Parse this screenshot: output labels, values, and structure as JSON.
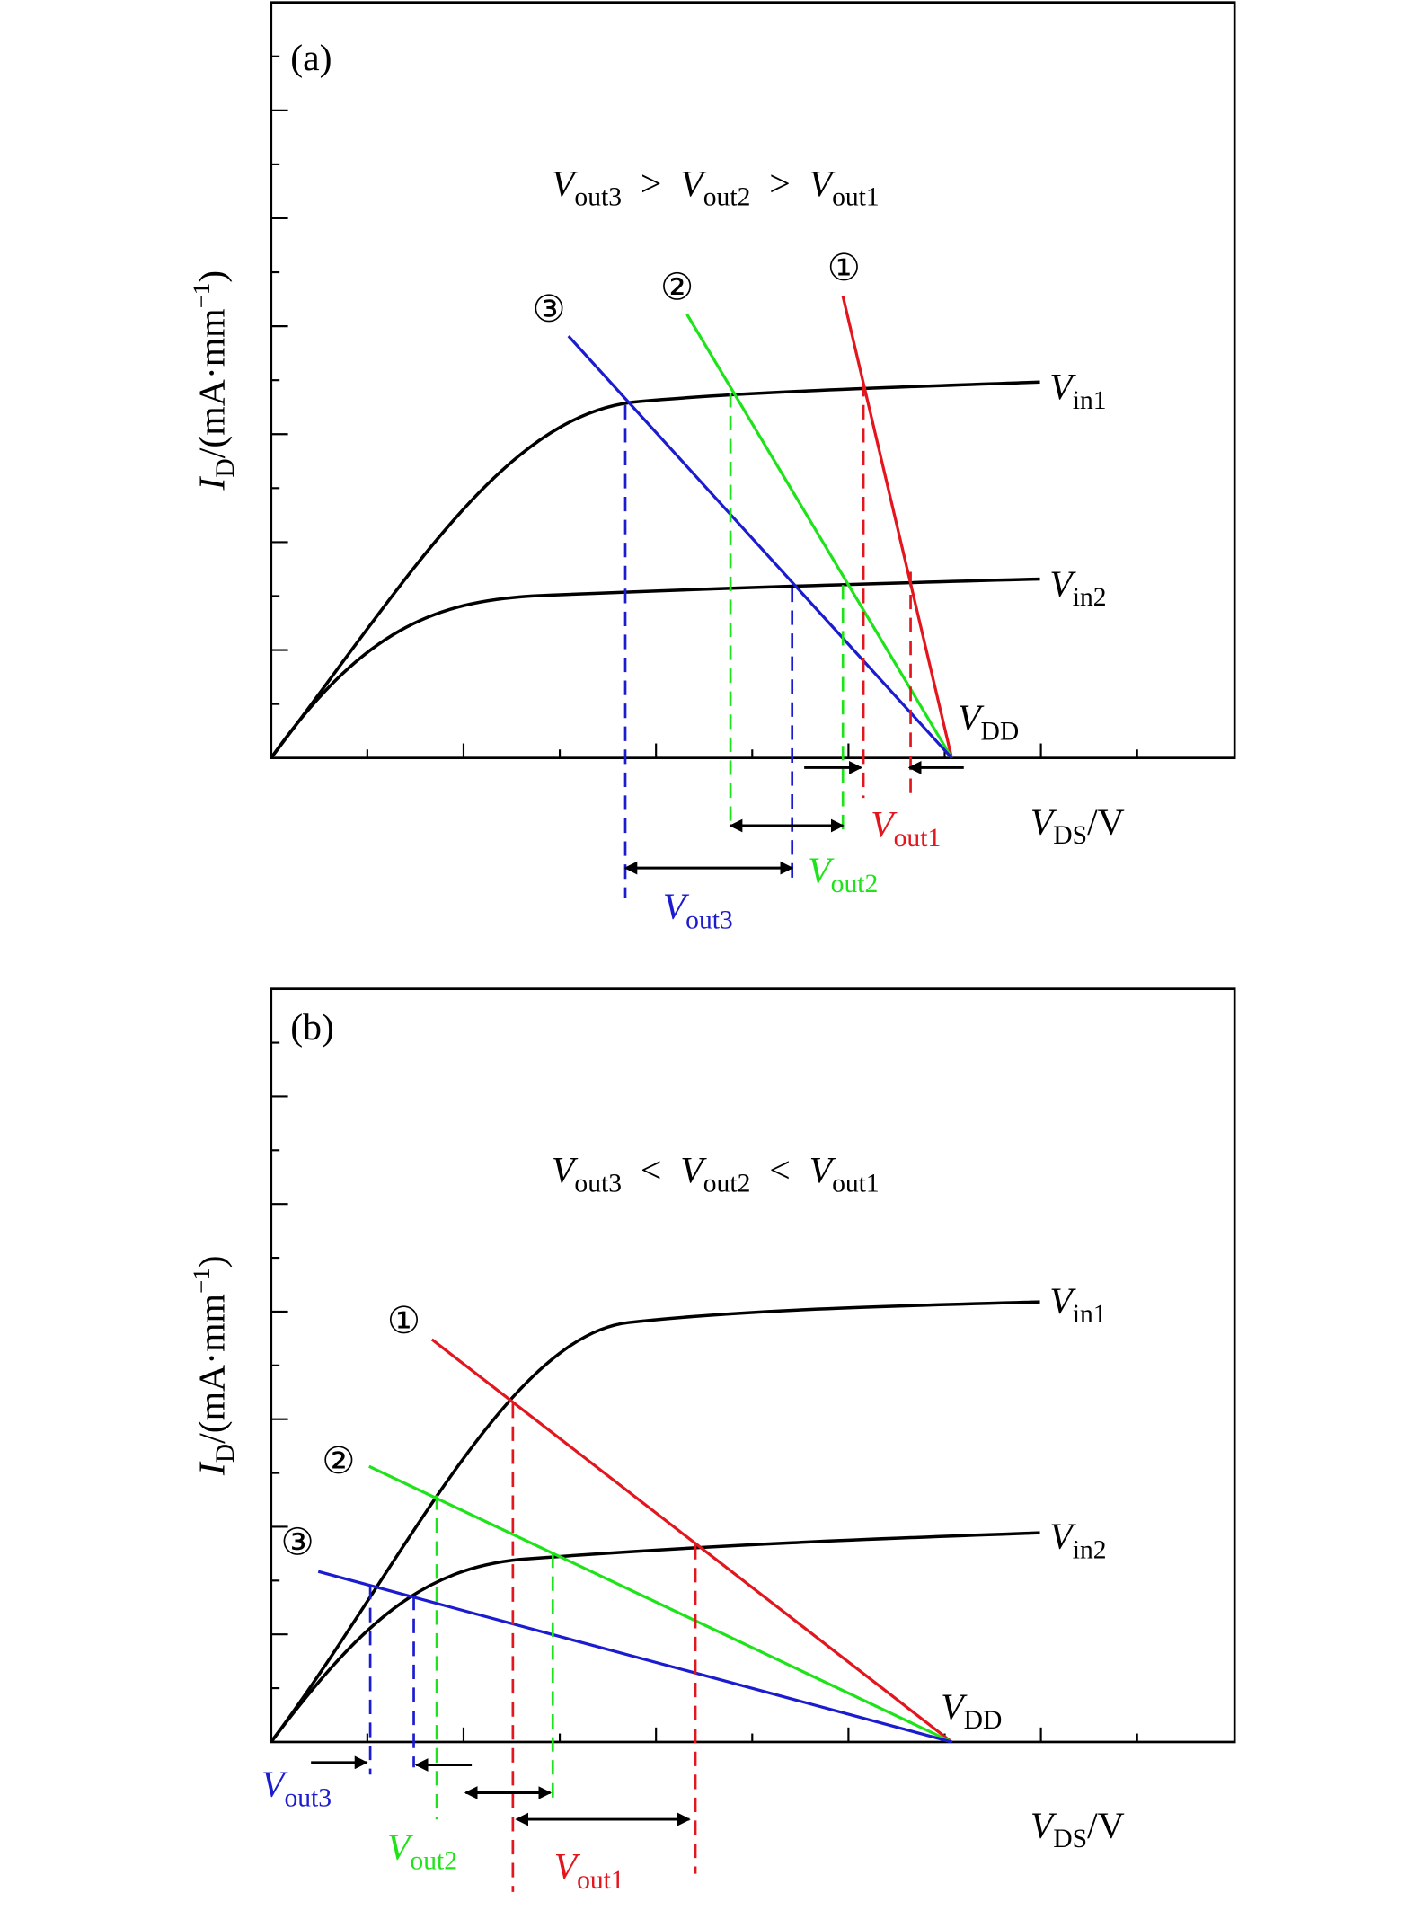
{
  "panels": [
    {
      "tag": "(a)",
      "relation": {
        "terms": [
          {
            "var": "V",
            "sub": "out3"
          },
          {
            "var": "V",
            "sub": "out2"
          },
          {
            "var": "V",
            "sub": "out1"
          }
        ],
        "operators": [
          ">",
          ">"
        ]
      },
      "y_label": {
        "var": "I",
        "sub": "D",
        "rest": "/(mA·mm",
        "sup": "−1",
        "close": ")"
      },
      "x_label": {
        "var": "V",
        "sub": "DS",
        "rest": "/V"
      },
      "curves": [
        {
          "var": "V",
          "sub": "in1"
        },
        {
          "var": "V",
          "sub": "in2"
        }
      ],
      "supply": {
        "var": "V",
        "sub": "DD"
      },
      "load_lines": [
        "①",
        "②",
        "③"
      ],
      "outputs": [
        {
          "var": "V",
          "sub": "out1"
        },
        {
          "var": "V",
          "sub": "out2"
        },
        {
          "var": "V",
          "sub": "out3"
        }
      ]
    },
    {
      "tag": "(b)",
      "relation": {
        "terms": [
          {
            "var": "V",
            "sub": "out3"
          },
          {
            "var": "V",
            "sub": "out2"
          },
          {
            "var": "V",
            "sub": "out1"
          }
        ],
        "operators": [
          "<",
          "<"
        ]
      },
      "y_label": {
        "var": "I",
        "sub": "D",
        "rest": "/(mA·mm",
        "sup": "−1",
        "close": ")"
      },
      "x_label": {
        "var": "V",
        "sub": "DS",
        "rest": "/V"
      },
      "curves": [
        {
          "var": "V",
          "sub": "in1"
        },
        {
          "var": "V",
          "sub": "in2"
        }
      ],
      "supply": {
        "var": "V",
        "sub": "DD"
      },
      "load_lines": [
        "①",
        "②",
        "③"
      ],
      "outputs": [
        {
          "var": "V",
          "sub": "out1"
        },
        {
          "var": "V",
          "sub": "out2"
        },
        {
          "var": "V",
          "sub": "out3"
        }
      ]
    }
  ]
}
